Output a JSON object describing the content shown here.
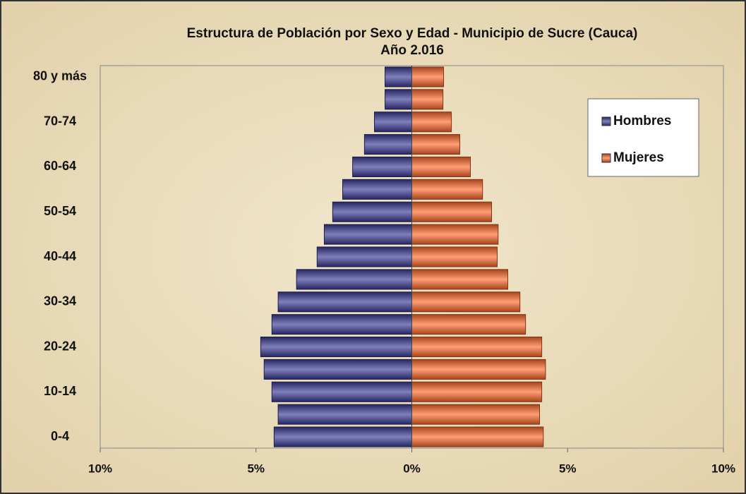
{
  "chart_data": {
    "type": "pyramid",
    "title": "Estructura de Población por Sexo y Edad - Municipio de Sucre (Cauca)",
    "subtitle": "Año  2.016",
    "categories": [
      "0-4",
      null,
      "10-14",
      null,
      "20-24",
      null,
      "30-34",
      null,
      "40-44",
      null,
      "50-54",
      null,
      "60-64",
      null,
      "70-74",
      null,
      "80 y más"
    ],
    "series": [
      {
        "name": "Hombres",
        "color": "#3a3a98",
        "values": [
          -4.42,
          -4.29,
          -4.49,
          -4.74,
          -4.85,
          -4.49,
          -4.29,
          -3.7,
          -3.04,
          -2.81,
          -2.54,
          -2.22,
          -1.9,
          -1.52,
          -1.2,
          -0.86,
          -0.86
        ]
      },
      {
        "name": "Mujeres",
        "color": "#ff6a2a",
        "values": [
          4.22,
          4.1,
          4.17,
          4.29,
          4.17,
          3.65,
          3.47,
          3.08,
          2.74,
          2.77,
          2.56,
          2.27,
          1.88,
          1.54,
          1.27,
          1.0,
          1.02
        ]
      }
    ],
    "xlim": [
      -10,
      10
    ],
    "xticks": [
      {
        "value": -10,
        "label": "10%"
      },
      {
        "value": -5,
        "label": "5%"
      },
      {
        "value": 0,
        "label": "0%"
      },
      {
        "value": 5,
        "label": "5%"
      },
      {
        "value": 10,
        "label": "10%"
      }
    ],
    "legend": "upper right"
  }
}
